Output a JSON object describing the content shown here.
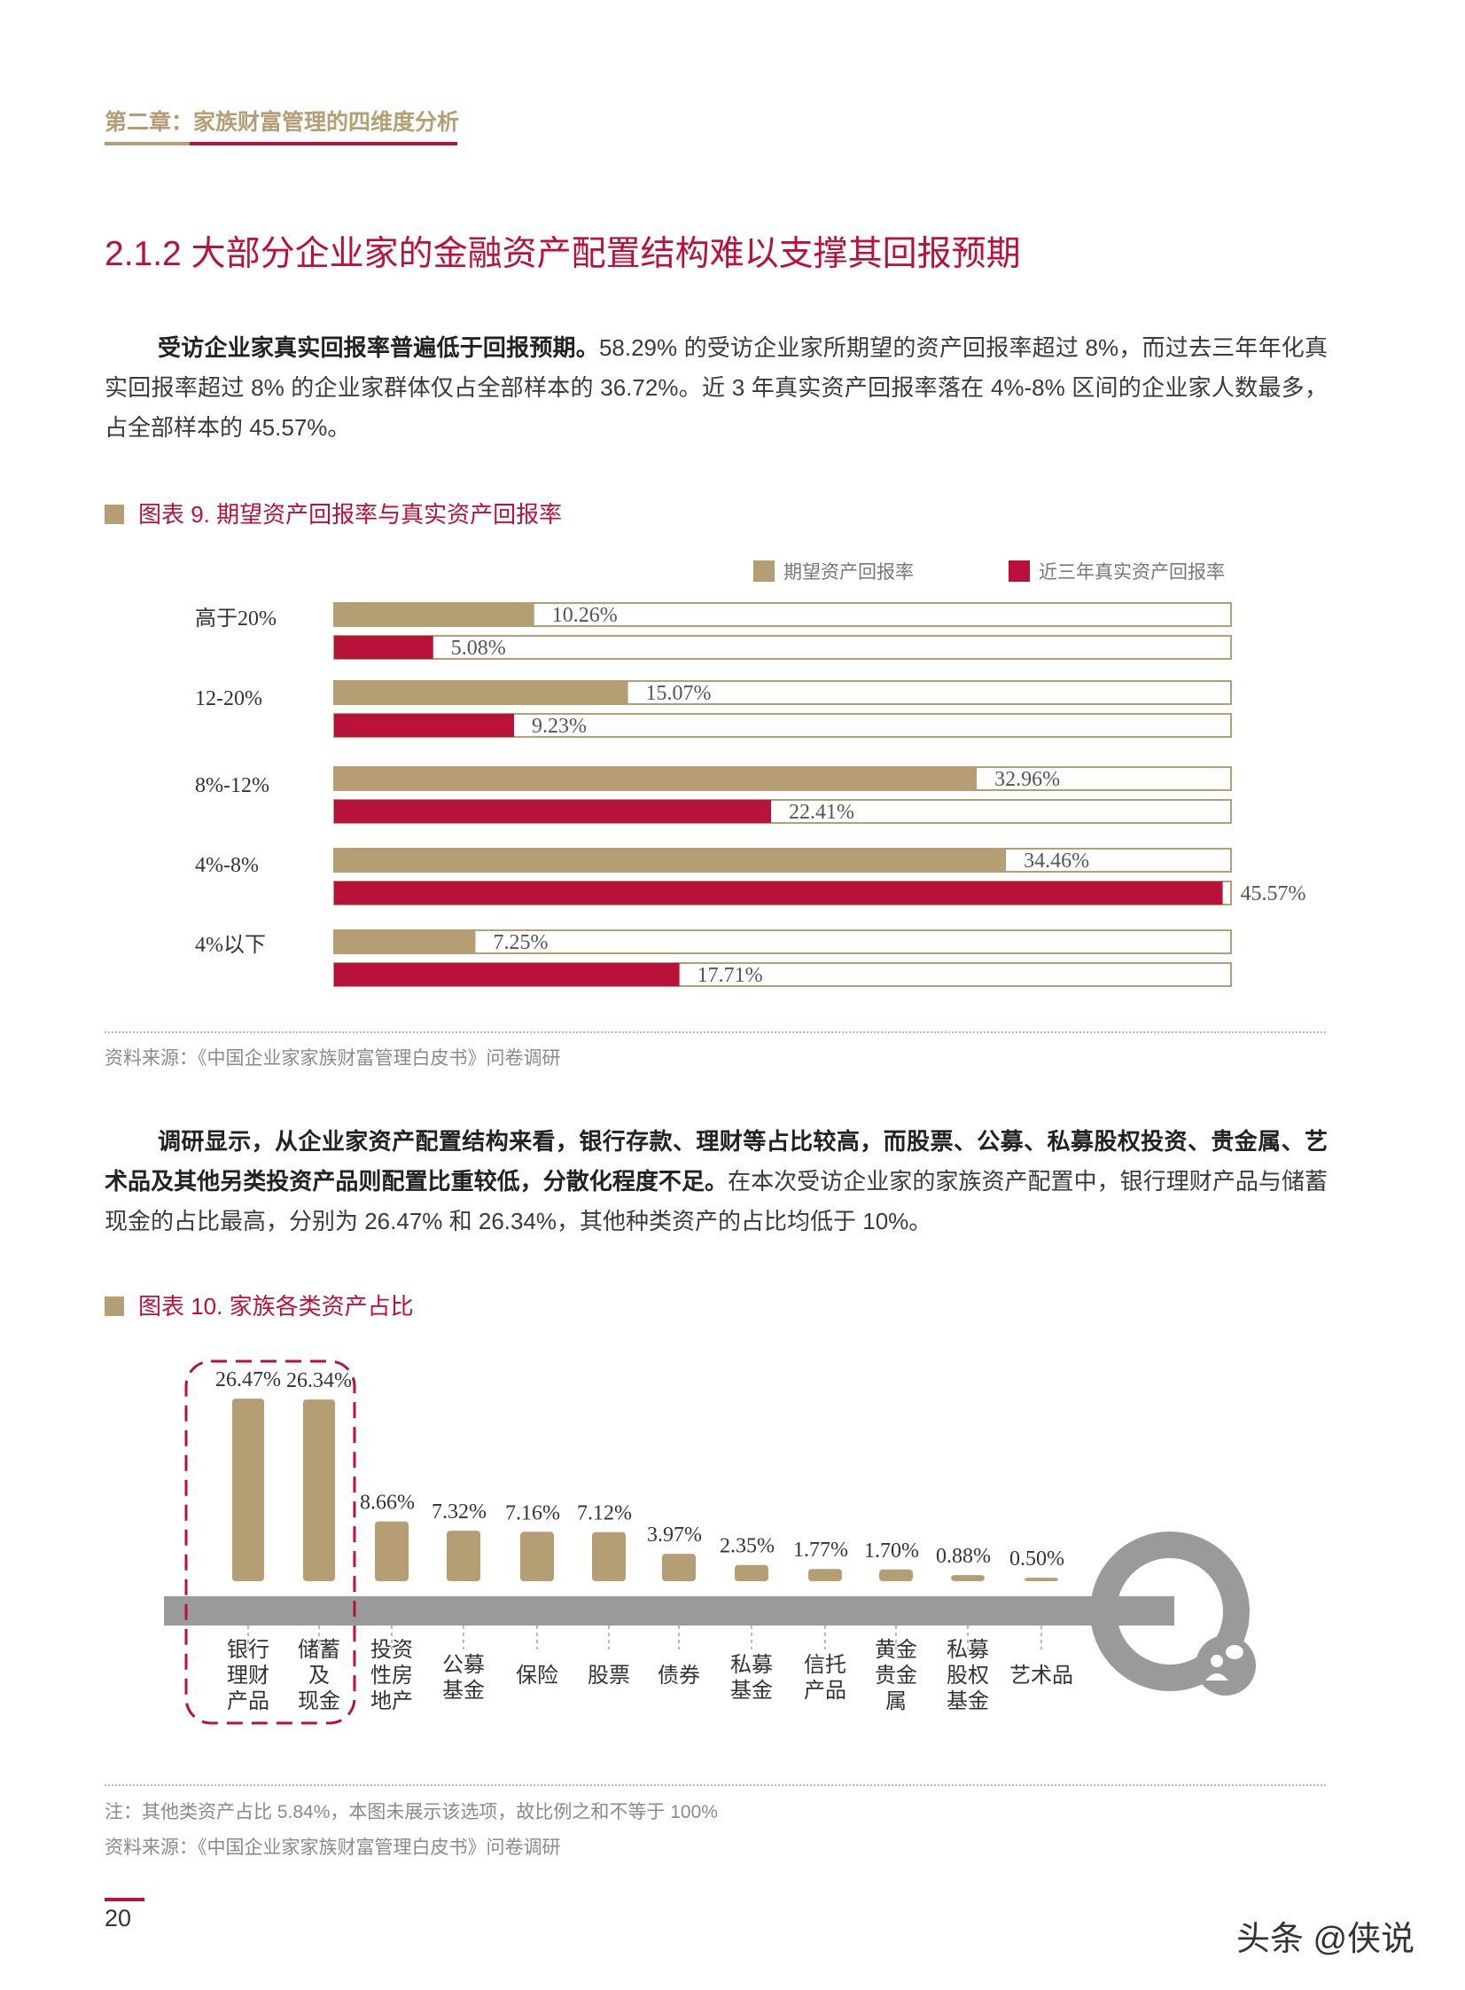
{
  "header": {
    "chapter": "第二章：家族财富管理的四维度分析"
  },
  "section": {
    "title": "2.1.2 大部分企业家的金融资产配置结构难以支撑其回报预期"
  },
  "para1": {
    "bold": "受访企业家真实回报率普遍低于回报预期。",
    "rest": "58.29% 的受访企业家所期望的资产回报率超过 8%，而过去三年年化真实回报率超过 8% 的企业家群体仅占全部样本的 36.72%。近 3 年真实资产回报率落在 4%-8% 区间的企业家人数最多，占全部样本的 45.57%。"
  },
  "figure9": {
    "title": "图表 9. 期望资产回报率与真实资产回报率",
    "source": "资料来源：《中国企业家家族财富管理白皮书》问卷调研"
  },
  "para2": {
    "bold": "调研显示，从企业家资产配置结构来看，银行存款、理财等占比较高，而股票、公募、私募股权投资、贵金属、艺术品及其他另类投资产品则配置比重较低，分散化程度不足。",
    "rest": "在本次受访企业家的家族资产配置中，银行理财产品与储蓄现金的占比最高，分别为 26.47% 和 26.34%，其他种类资产的占比均低于 10%。"
  },
  "figure10": {
    "title": "图表 10. 家族各类资产占比",
    "note": "注：其他类资产占比 5.84%，本图未展示该选项，故比例之和不等于 100%",
    "source": "资料来源：《中国企业家家族财富管理白皮书》问卷调研"
  },
  "chart_data": [
    {
      "type": "bar",
      "orientation": "horizontal",
      "categories": [
        "高于20%",
        "12-20%",
        "8%-12%",
        "4%-8%",
        "4%以下"
      ],
      "series": [
        {
          "name": "期望资产回报率",
          "color": "#b59d74",
          "values": [
            10.26,
            15.07,
            32.96,
            34.46,
            7.25
          ],
          "labels": [
            "10.26%",
            "15.07%",
            "32.96%",
            "34.46%",
            "7.25%"
          ]
        },
        {
          "name": "近三年真实资产回报率",
          "color": "#b8123b",
          "values": [
            5.08,
            9.23,
            22.41,
            45.57,
            17.71
          ],
          "labels": [
            "5.08%",
            "9.23%",
            "22.41%",
            "45.57%",
            "17.71%"
          ]
        }
      ],
      "xlim": [
        0,
        46
      ]
    },
    {
      "type": "bar",
      "categories": [
        "银行理财产品",
        "储蓄及现金",
        "投资性房地产",
        "公募基金",
        "保险",
        "股票",
        "债券",
        "私募基金",
        "信托产品",
        "黄金贵金属",
        "私募股权基金",
        "艺术品"
      ],
      "category_lines": [
        [
          "银行",
          "理财",
          "产品"
        ],
        [
          "储蓄",
          "及",
          "现金"
        ],
        [
          "投资",
          "性房",
          "地产"
        ],
        [
          "公募",
          "基金"
        ],
        [
          "保险"
        ],
        [
          "股票"
        ],
        [
          "债券"
        ],
        [
          "私募",
          "基金"
        ],
        [
          "信托",
          "产品"
        ],
        [
          "黄金",
          "贵金",
          "属"
        ],
        [
          "私募",
          "股权",
          "基金"
        ],
        [
          "艺术品"
        ]
      ],
      "values": [
        26.47,
        26.34,
        8.66,
        7.32,
        7.16,
        7.12,
        3.97,
        2.35,
        1.77,
        1.7,
        0.88,
        0.5
      ],
      "labels": [
        "26.47%",
        "26.34%",
        "8.66%",
        "7.32%",
        "7.16%",
        "7.12%",
        "3.97%",
        "2.35%",
        "1.77%",
        "1.70%",
        "0.88%",
        "0.50%"
      ],
      "ylim": [
        0,
        27
      ],
      "colors": {
        "bar": "#b59d74",
        "axis": "#9a9a9a",
        "highlight": "#b8123b"
      },
      "icon": "people-chat-icon"
    }
  ],
  "footer": {
    "page": "20",
    "watermark": "头条 @侠说"
  }
}
